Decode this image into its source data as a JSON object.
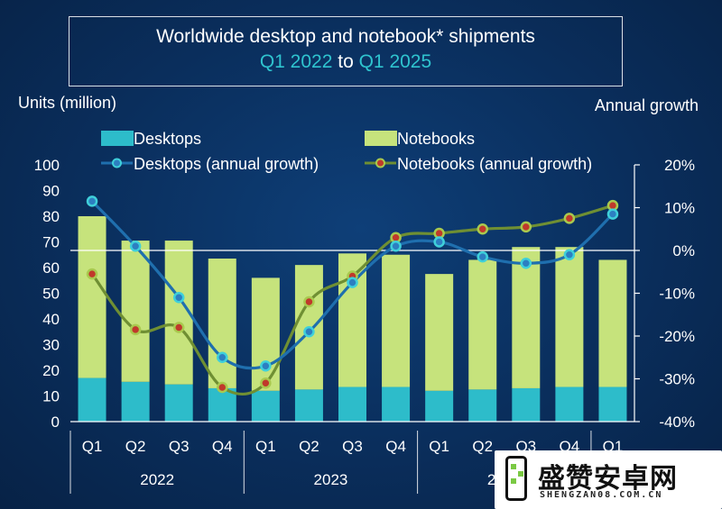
{
  "title_line1": "Worldwide desktop and notebook* shipments",
  "title_line2": {
    "start": "Q1 2022",
    "mid": "to",
    "end": "Q1 2025"
  },
  "colors": {
    "desktops": "#2dbcca",
    "notebooks": "#c6e37c",
    "desktops_growth_line": "#1f6fae",
    "notebooks_growth_line": "#6f8f33",
    "accent": "#2fc4cf"
  },
  "watermark": {
    "name": "盛赞安卓网",
    "url": "SHENGZAN08.COM.CN"
  },
  "chart_data": {
    "type": "bar",
    "ylabel": "Units (million)",
    "y2label": "Annual growth",
    "ylim": [
      0,
      100
    ],
    "y2lim": [
      -40,
      20
    ],
    "yticks": [
      "0",
      "10",
      "20",
      "30",
      "40",
      "50",
      "60",
      "70",
      "80",
      "90",
      "100"
    ],
    "y2ticks": [
      "-40%",
      "-30%",
      "-20%",
      "-10%",
      "0%",
      "10%",
      "20%"
    ],
    "categories": [
      "Q1",
      "Q2",
      "Q3",
      "Q4",
      "Q1",
      "Q2",
      "Q3",
      "Q4",
      "Q1",
      "Q2",
      "Q3",
      "Q4",
      "Q1"
    ],
    "years": [
      {
        "label": "2022",
        "start": 0,
        "end": 3
      },
      {
        "label": "2023",
        "start": 4,
        "end": 7
      },
      {
        "label": "2024",
        "start": 8,
        "end": 11
      }
    ],
    "legend_position": "top",
    "series": [
      {
        "name": "Desktops",
        "kind": "bar",
        "axis": "left",
        "values": [
          17,
          15.5,
          14.5,
          13,
          12,
          12.5,
          13.5,
          13.5,
          12,
          12.5,
          13,
          13.5,
          13.5
        ]
      },
      {
        "name": "Notebooks",
        "kind": "bar",
        "axis": "left",
        "values": [
          63,
          55,
          56,
          50.5,
          44,
          48.5,
          52,
          51.5,
          45.5,
          50.5,
          55,
          54.5,
          49.5
        ]
      },
      {
        "name": "Desktops (annual growth)",
        "kind": "line",
        "axis": "right",
        "values": [
          11.5,
          1,
          -11,
          -25,
          -27,
          -19,
          -7.5,
          1,
          2,
          -1.5,
          -3,
          -1,
          8.5
        ]
      },
      {
        "name": "Notebooks (annual growth)",
        "kind": "line",
        "axis": "right",
        "values": [
          -5.5,
          -18.5,
          -18,
          -32,
          -31,
          -12,
          -6,
          3,
          4,
          5,
          5.5,
          7.5,
          10.5
        ]
      }
    ]
  }
}
